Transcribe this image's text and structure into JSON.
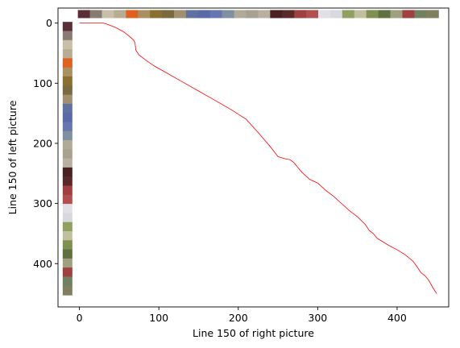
{
  "chart_data": {
    "type": "line",
    "xlabel": "Line 150 of right picture",
    "ylabel": "Line 150 of left picture",
    "xlim": [
      -27,
      465
    ],
    "ylim": [
      472,
      -25
    ],
    "y_inverted": true,
    "grid": false,
    "xticks": [
      0,
      100,
      200,
      300,
      400
    ],
    "yticks": [
      0,
      100,
      200,
      300,
      400
    ],
    "series": [
      {
        "color": "#ff0000",
        "x": [
          0,
          30,
          35,
          45,
          55,
          62,
          68,
          70,
          71,
          75,
          85,
          95,
          110,
          130,
          150,
          170,
          190,
          210,
          225,
          240,
          250,
          260,
          265,
          270,
          275,
          280,
          290,
          300,
          310,
          320,
          330,
          340,
          350,
          360,
          365,
          370,
          375,
          380,
          390,
          400,
          410,
          420,
          425,
          430,
          435,
          440,
          445,
          450
        ],
        "y": [
          0,
          0,
          2,
          7,
          14,
          21,
          28,
          33,
          45,
          53,
          63,
          72,
          83,
          98,
          113,
          128,
          143,
          160,
          182,
          205,
          222,
          226,
          227,
          232,
          240,
          248,
          260,
          266,
          278,
          288,
          300,
          312,
          322,
          335,
          345,
          350,
          358,
          362,
          370,
          377,
          385,
          396,
          405,
          415,
          420,
          428,
          440,
          450
        ]
      }
    ],
    "strip_top": {
      "x_range": [
        -2,
        452
      ],
      "y": -15,
      "colors": [
        "#5a2e36",
        "#8a7a74",
        "#c8bfa8",
        "#b8ad92",
        "#e06020",
        "#aa9060",
        "#8a7030",
        "#7a6a40",
        "#a09070",
        "#6070a0",
        "#5a6aa8",
        "#6677b0",
        "#8090a0",
        "#b0aa96",
        "#a8a090",
        "#b8b0a0",
        "#4a2020",
        "#5a2a2a",
        "#a04040",
        "#b05050",
        "#e0e0e6",
        "#d8d8e0",
        "#90a060",
        "#c0c0a0",
        "#809050",
        "#607040",
        "#a0a080",
        "#a04040",
        "#708060",
        "#808060"
      ]
    },
    "strip_left": {
      "y_range": [
        -2,
        452
      ],
      "x": -15,
      "colors": [
        "#5a2e36",
        "#8a7a74",
        "#c8bfa8",
        "#b8ad92",
        "#e06020",
        "#aa9060",
        "#8a7030",
        "#7a6a40",
        "#a09070",
        "#6070a0",
        "#5a6aa8",
        "#6677b0",
        "#8090a0",
        "#b0aa96",
        "#a8a090",
        "#b8b0a0",
        "#4a2020",
        "#5a2a2a",
        "#a04040",
        "#b05050",
        "#e0e0e6",
        "#d8d8e0",
        "#90a060",
        "#c0c0a0",
        "#809050",
        "#607040",
        "#a0a080",
        "#a04040",
        "#708060",
        "#808060"
      ]
    }
  }
}
